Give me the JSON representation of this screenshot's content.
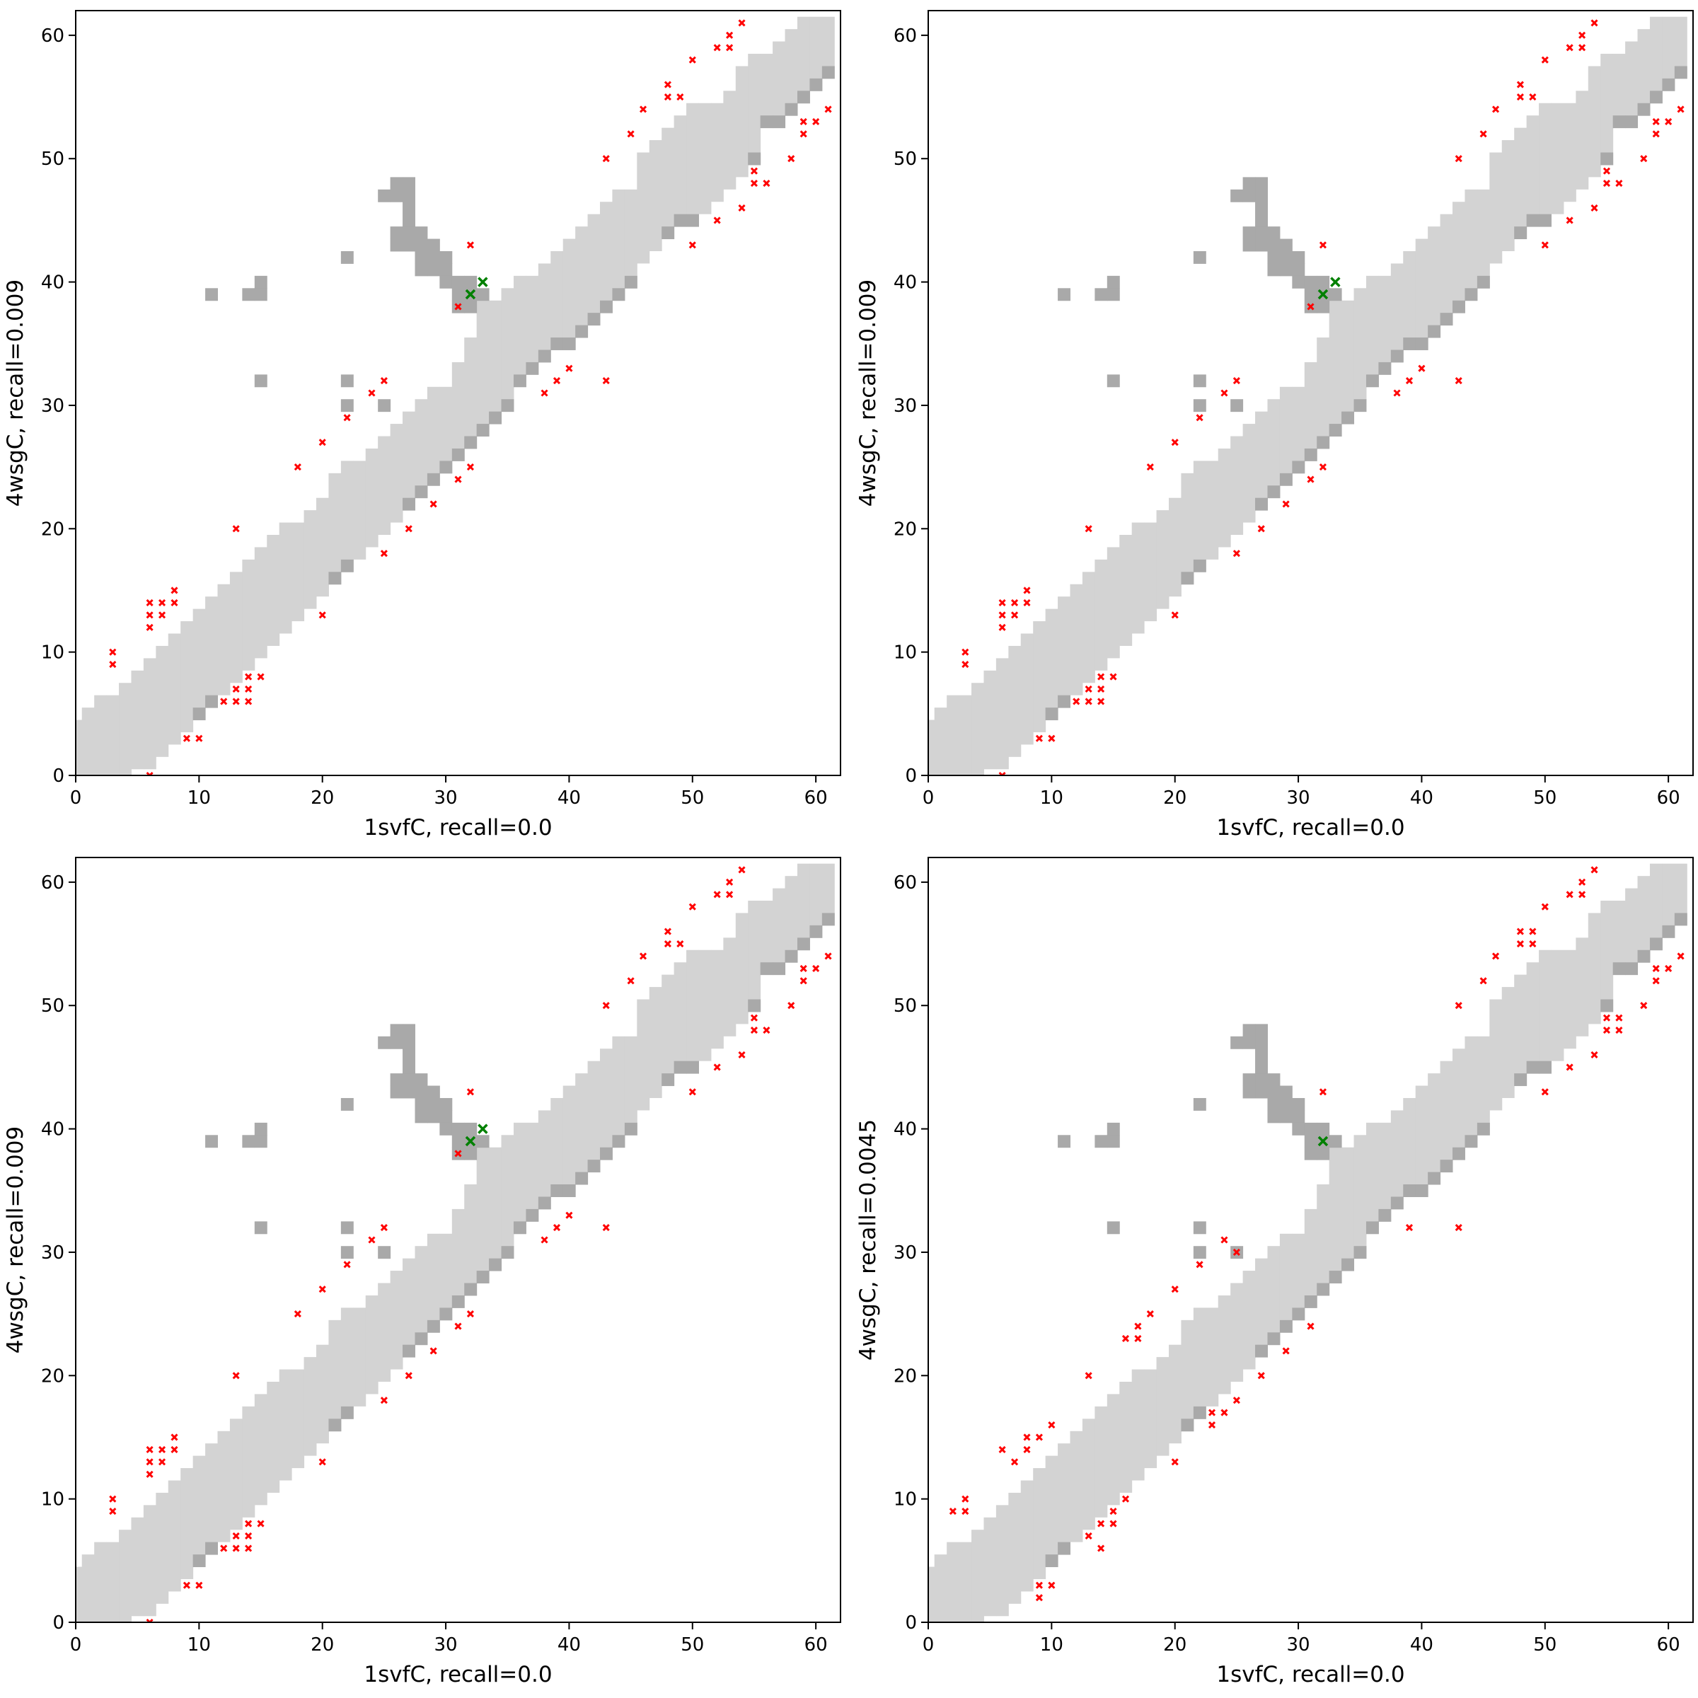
{
  "colors": {
    "light": "#d3d3d3",
    "dark": "#a9a9a9",
    "false_contact": "#ff0000",
    "true_contact": "#008000",
    "axis": "#000000"
  },
  "chart_data": {
    "type": "heatmap",
    "layout": "2x2 grid",
    "xlim": [
      0,
      62
    ],
    "ylim": [
      0,
      62
    ],
    "xticks": [
      0,
      10,
      20,
      30,
      40,
      50,
      60
    ],
    "yticks": [
      0,
      10,
      20,
      30,
      40,
      50,
      60
    ],
    "contact_map": {
      "band_hi": [
        4,
        5,
        6,
        6,
        7,
        8,
        9,
        10,
        11,
        12,
        13,
        14,
        15,
        16,
        17,
        18,
        19,
        20,
        20,
        21,
        22,
        24,
        25,
        25,
        26,
        27,
        28,
        29,
        30,
        31,
        31,
        33,
        35,
        38,
        38,
        39,
        40,
        40,
        41,
        42,
        43,
        44,
        45,
        46,
        47,
        47,
        50,
        51,
        52,
        53,
        54,
        54,
        54,
        55,
        57,
        58,
        58,
        59,
        60,
        61,
        61,
        61
      ],
      "band_lo": [
        0,
        0,
        0,
        0,
        0,
        1,
        1,
        2,
        3,
        4,
        5,
        6,
        7,
        8,
        9,
        10,
        11,
        12,
        13,
        14,
        15,
        16,
        17,
        18,
        19,
        20,
        21,
        22,
        23,
        24,
        25,
        26,
        27,
        28,
        29,
        30,
        32,
        33,
        34,
        35,
        35,
        36,
        37,
        38,
        39,
        40,
        42,
        43,
        44,
        45,
        45,
        46,
        47,
        48,
        49,
        50,
        53,
        53,
        54,
        55,
        56,
        57
      ],
      "dark_lower_columns": [
        10,
        11,
        21,
        22,
        27,
        28,
        29,
        30,
        31,
        32,
        33,
        34,
        35,
        36,
        37,
        38,
        39,
        40,
        41,
        42,
        43,
        44,
        45,
        48,
        49,
        50,
        55,
        56,
        57,
        58,
        59,
        60,
        61
      ],
      "dark_cells": [
        [
          11,
          39
        ],
        [
          14,
          39
        ],
        [
          15,
          39
        ],
        [
          15,
          40
        ],
        [
          15,
          32
        ],
        [
          22,
          42
        ],
        [
          22,
          32
        ],
        [
          22,
          30
        ],
        [
          25,
          30
        ],
        [
          26,
          48
        ],
        [
          27,
          48
        ],
        [
          25,
          47
        ],
        [
          26,
          47
        ],
        [
          27,
          47
        ],
        [
          27,
          46
        ],
        [
          27,
          45
        ],
        [
          26,
          44
        ],
        [
          27,
          44
        ],
        [
          28,
          44
        ],
        [
          26,
          43
        ],
        [
          27,
          43
        ],
        [
          28,
          43
        ],
        [
          29,
          43
        ],
        [
          28,
          42
        ],
        [
          29,
          42
        ],
        [
          30,
          42
        ],
        [
          28,
          41
        ],
        [
          29,
          41
        ],
        [
          30,
          41
        ],
        [
          30,
          40
        ],
        [
          31,
          40
        ],
        [
          32,
          40
        ],
        [
          31,
          39
        ],
        [
          32,
          39
        ],
        [
          33,
          39
        ],
        [
          31,
          38
        ],
        [
          32,
          38
        ]
      ]
    },
    "panels": [
      {
        "xlabel": "1svfC, recall=0.0",
        "ylabel": "4wsgC, recall=0.009",
        "red_points": [
          [
            3,
            10
          ],
          [
            3,
            9
          ],
          [
            6,
            14
          ],
          [
            6,
            13
          ],
          [
            6,
            12
          ],
          [
            7,
            14
          ],
          [
            7,
            13
          ],
          [
            8,
            15
          ],
          [
            8,
            14
          ],
          [
            13,
            20
          ],
          [
            18,
            25
          ],
          [
            20,
            27
          ],
          [
            22,
            29
          ],
          [
            24,
            31
          ],
          [
            25,
            32
          ],
          [
            32,
            43
          ],
          [
            31,
            38
          ],
          [
            9,
            3
          ],
          [
            10,
            3
          ],
          [
            12,
            6
          ],
          [
            13,
            7
          ],
          [
            13,
            6
          ],
          [
            14,
            8
          ],
          [
            14,
            7
          ],
          [
            14,
            6
          ],
          [
            15,
            8
          ],
          [
            6,
            0
          ],
          [
            20,
            13
          ],
          [
            25,
            18
          ],
          [
            27,
            20
          ],
          [
            29,
            22
          ],
          [
            31,
            24
          ],
          [
            32,
            25
          ],
          [
            38,
            31
          ],
          [
            39,
            32
          ],
          [
            40,
            33
          ],
          [
            43,
            32
          ],
          [
            43,
            50
          ],
          [
            45,
            52
          ],
          [
            46,
            54
          ],
          [
            48,
            56
          ],
          [
            48,
            55
          ],
          [
            49,
            55
          ],
          [
            50,
            58
          ],
          [
            52,
            59
          ],
          [
            53,
            60
          ],
          [
            53,
            59
          ],
          [
            54,
            61
          ],
          [
            50,
            43
          ],
          [
            52,
            45
          ],
          [
            54,
            46
          ],
          [
            55,
            49
          ],
          [
            55,
            48
          ],
          [
            56,
            48
          ],
          [
            58,
            50
          ],
          [
            59,
            52
          ],
          [
            59,
            53
          ],
          [
            60,
            53
          ],
          [
            61,
            54
          ]
        ],
        "green_points": [
          [
            32,
            39
          ],
          [
            33,
            40
          ]
        ]
      },
      {
        "xlabel": "1svfC, recall=0.0",
        "ylabel": "4wsgC, recall=0.009",
        "red_points": [
          [
            3,
            10
          ],
          [
            3,
            9
          ],
          [
            6,
            14
          ],
          [
            6,
            13
          ],
          [
            6,
            12
          ],
          [
            7,
            14
          ],
          [
            7,
            13
          ],
          [
            8,
            15
          ],
          [
            8,
            14
          ],
          [
            13,
            20
          ],
          [
            18,
            25
          ],
          [
            20,
            27
          ],
          [
            22,
            29
          ],
          [
            24,
            31
          ],
          [
            25,
            32
          ],
          [
            32,
            43
          ],
          [
            31,
            38
          ],
          [
            9,
            3
          ],
          [
            10,
            3
          ],
          [
            12,
            6
          ],
          [
            13,
            7
          ],
          [
            13,
            6
          ],
          [
            14,
            8
          ],
          [
            14,
            7
          ],
          [
            14,
            6
          ],
          [
            15,
            8
          ],
          [
            6,
            0
          ],
          [
            20,
            13
          ],
          [
            25,
            18
          ],
          [
            27,
            20
          ],
          [
            29,
            22
          ],
          [
            31,
            24
          ],
          [
            32,
            25
          ],
          [
            38,
            31
          ],
          [
            39,
            32
          ],
          [
            40,
            33
          ],
          [
            43,
            32
          ],
          [
            43,
            50
          ],
          [
            45,
            52
          ],
          [
            46,
            54
          ],
          [
            48,
            56
          ],
          [
            48,
            55
          ],
          [
            49,
            55
          ],
          [
            50,
            58
          ],
          [
            52,
            59
          ],
          [
            53,
            60
          ],
          [
            53,
            59
          ],
          [
            54,
            61
          ],
          [
            50,
            43
          ],
          [
            52,
            45
          ],
          [
            54,
            46
          ],
          [
            55,
            49
          ],
          [
            55,
            48
          ],
          [
            56,
            48
          ],
          [
            58,
            50
          ],
          [
            59,
            52
          ],
          [
            59,
            53
          ],
          [
            60,
            53
          ],
          [
            61,
            54
          ]
        ],
        "green_points": [
          [
            32,
            39
          ],
          [
            33,
            40
          ]
        ]
      },
      {
        "xlabel": "1svfC, recall=0.0",
        "ylabel": "4wsgC, recall=0.009",
        "red_points": [
          [
            3,
            10
          ],
          [
            3,
            9
          ],
          [
            6,
            14
          ],
          [
            6,
            13
          ],
          [
            6,
            12
          ],
          [
            7,
            14
          ],
          [
            7,
            13
          ],
          [
            8,
            15
          ],
          [
            8,
            14
          ],
          [
            13,
            20
          ],
          [
            18,
            25
          ],
          [
            20,
            27
          ],
          [
            22,
            29
          ],
          [
            24,
            31
          ],
          [
            25,
            32
          ],
          [
            32,
            43
          ],
          [
            31,
            38
          ],
          [
            9,
            3
          ],
          [
            10,
            3
          ],
          [
            12,
            6
          ],
          [
            13,
            7
          ],
          [
            13,
            6
          ],
          [
            14,
            8
          ],
          [
            14,
            7
          ],
          [
            14,
            6
          ],
          [
            15,
            8
          ],
          [
            6,
            0
          ],
          [
            20,
            13
          ],
          [
            25,
            18
          ],
          [
            27,
            20
          ],
          [
            29,
            22
          ],
          [
            31,
            24
          ],
          [
            32,
            25
          ],
          [
            38,
            31
          ],
          [
            39,
            32
          ],
          [
            40,
            33
          ],
          [
            43,
            32
          ],
          [
            43,
            50
          ],
          [
            45,
            52
          ],
          [
            46,
            54
          ],
          [
            48,
            56
          ],
          [
            48,
            55
          ],
          [
            49,
            55
          ],
          [
            50,
            58
          ],
          [
            52,
            59
          ],
          [
            53,
            60
          ],
          [
            53,
            59
          ],
          [
            54,
            61
          ],
          [
            50,
            43
          ],
          [
            52,
            45
          ],
          [
            54,
            46
          ],
          [
            55,
            49
          ],
          [
            55,
            48
          ],
          [
            56,
            48
          ],
          [
            58,
            50
          ],
          [
            59,
            52
          ],
          [
            59,
            53
          ],
          [
            60,
            53
          ],
          [
            61,
            54
          ]
        ],
        "green_points": [
          [
            32,
            39
          ],
          [
            33,
            40
          ]
        ]
      },
      {
        "xlabel": "1svfC, recall=0.0",
        "ylabel": "4wsgC, recall=0.0045",
        "red_points": [
          [
            2,
            9
          ],
          [
            3,
            10
          ],
          [
            3,
            9
          ],
          [
            6,
            14
          ],
          [
            7,
            13
          ],
          [
            8,
            15
          ],
          [
            8,
            14
          ],
          [
            9,
            15
          ],
          [
            10,
            16
          ],
          [
            13,
            20
          ],
          [
            16,
            23
          ],
          [
            17,
            24
          ],
          [
            17,
            23
          ],
          [
            18,
            25
          ],
          [
            20,
            27
          ],
          [
            22,
            29
          ],
          [
            24,
            31
          ],
          [
            25,
            30
          ],
          [
            32,
            43
          ],
          [
            9,
            3
          ],
          [
            9,
            2
          ],
          [
            10,
            3
          ],
          [
            13,
            7
          ],
          [
            14,
            8
          ],
          [
            14,
            6
          ],
          [
            15,
            9
          ],
          [
            15,
            8
          ],
          [
            16,
            10
          ],
          [
            20,
            13
          ],
          [
            23,
            17
          ],
          [
            23,
            16
          ],
          [
            24,
            17
          ],
          [
            25,
            18
          ],
          [
            27,
            20
          ],
          [
            29,
            22
          ],
          [
            31,
            24
          ],
          [
            39,
            32
          ],
          [
            43,
            32
          ],
          [
            43,
            50
          ],
          [
            45,
            52
          ],
          [
            46,
            54
          ],
          [
            48,
            56
          ],
          [
            48,
            55
          ],
          [
            49,
            56
          ],
          [
            49,
            55
          ],
          [
            50,
            58
          ],
          [
            52,
            59
          ],
          [
            53,
            60
          ],
          [
            53,
            59
          ],
          [
            54,
            61
          ],
          [
            50,
            43
          ],
          [
            52,
            45
          ],
          [
            54,
            46
          ],
          [
            55,
            49
          ],
          [
            56,
            49
          ],
          [
            55,
            48
          ],
          [
            56,
            48
          ],
          [
            58,
            50
          ],
          [
            59,
            52
          ],
          [
            59,
            53
          ],
          [
            60,
            53
          ],
          [
            61,
            54
          ]
        ],
        "green_points": [
          [
            32,
            39
          ]
        ]
      }
    ]
  }
}
